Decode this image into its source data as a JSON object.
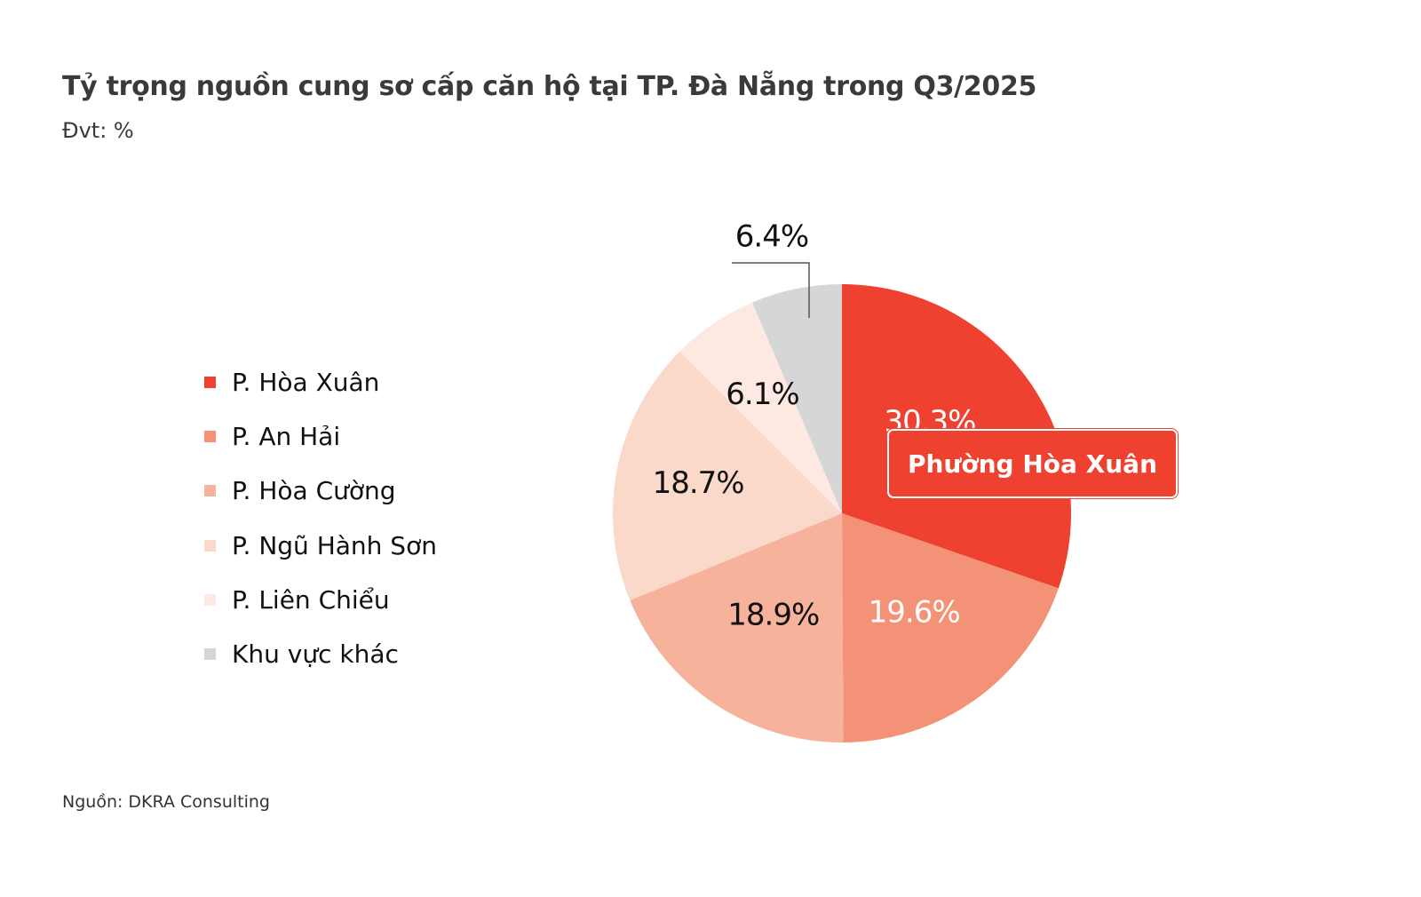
{
  "title": "Tỷ trọng nguồn cung sơ cấp căn hộ tại TP. Đà Nẵng trong Q3/2025",
  "subtitle": "Đvt: %",
  "source": "Nguồn: DKRA Consulting",
  "callout": "Phường Hòa Xuân",
  "chart_data": {
    "type": "pie",
    "title": "Tỷ trọng nguồn cung sơ cấp căn hộ tại TP. Đà Nẵng trong Q3/2025",
    "unit": "%",
    "legend_position": "left",
    "start_angle": "12 o'clock, clockwise",
    "slices": [
      {
        "label": "P. Hòa Xuân",
        "value": 30.3,
        "data_label": "30.3%",
        "color": "#ee4130",
        "label_color": "#ffffff"
      },
      {
        "label": "P. An Hải",
        "value": 19.6,
        "data_label": "19.6%",
        "color": "#f39276",
        "label_color": "#ffffff"
      },
      {
        "label": "P. Hòa Cường",
        "value": 18.9,
        "data_label": "18.9%",
        "color": "#f6b29a",
        "label_color": "#111111"
      },
      {
        "label": "P. Ngũ Hành Sơn",
        "value": 18.7,
        "data_label": "18.7%",
        "color": "#fad8ca",
        "label_color": "#111111"
      },
      {
        "label": "P. Liên Chiểu",
        "value": 6.1,
        "data_label": "6.1%",
        "color": "#fde9e2",
        "label_color": "#111111"
      },
      {
        "label": "Khu vực khác",
        "value": 6.4,
        "data_label": "6.4%",
        "color": "#d6d6d8",
        "label_color": "#111111"
      }
    ]
  }
}
